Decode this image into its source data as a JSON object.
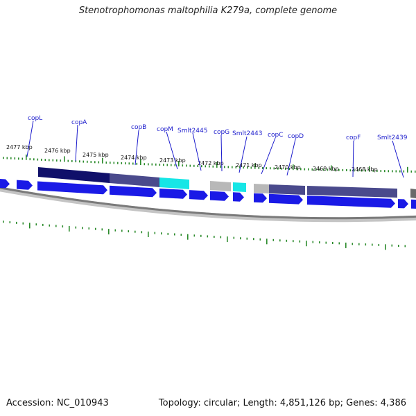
{
  "title": "Stenotrophomonas maltophilia K279a, complete genome",
  "footer": {
    "accession": "Accession: NC_010943",
    "stats": "Topology: circular; Length: 4,851,126 bp; Genes: 4,386"
  },
  "colors": {
    "cds_forward": "#1a1ae6",
    "cds_highlight_dark": "#10106a",
    "cds_highlight_mid": "#4a4a8c",
    "cds_cyan": "#17e6e6",
    "cds_gray": "#b8b8b8",
    "tick": "#2a8a2a",
    "gene_label": "#1a1acc",
    "backbone": "#7a7a7a"
  },
  "scale_labels": [
    "2477 kbp",
    "2476 kbp",
    "2475 kbp",
    "2474 kbp",
    "2473 kbp",
    "2472 kbp",
    "2471 kbp",
    "2470 kbp",
    "2469 kbp",
    "2468 kbp"
  ],
  "gene_labels": [
    "copL",
    "copA",
    "copB",
    "copM",
    "Smlt2445",
    "copG",
    "Smlt2443",
    "copC",
    "copD",
    "copF",
    "Smlt2439"
  ]
}
